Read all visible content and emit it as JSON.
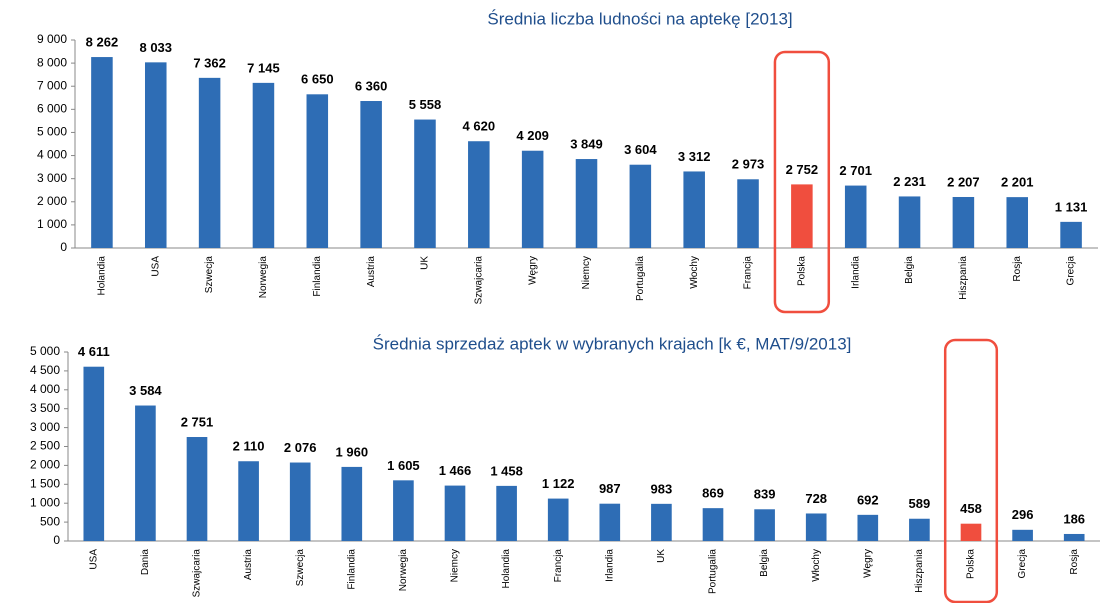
{
  "chart_data": [
    {
      "type": "bar",
      "title": "Średnia liczba ludności na aptekę [2013]",
      "categories": [
        "Holandia",
        "USA",
        "Szwecja",
        "Norwegia",
        "Finlandia",
        "Austria",
        "UK",
        "Szwajcaria",
        "Węgry",
        "Niemcy",
        "Portugalia",
        "Włochy",
        "Francja",
        "Polska",
        "Irlandia",
        "Belgia",
        "Hiszpania",
        "Rosja",
        "Grecja"
      ],
      "values": [
        8262,
        8033,
        7362,
        7145,
        6650,
        6360,
        5558,
        4620,
        4209,
        3849,
        3604,
        3312,
        2973,
        2752,
        2701,
        2231,
        2207,
        2201,
        1131
      ],
      "value_labels": [
        "8 262",
        "8 033",
        "7 362",
        "7 145",
        "6 650",
        "6 360",
        "5 558",
        "4 620",
        "4 209",
        "3 849",
        "3 604",
        "3 312",
        "2 973",
        "2 752",
        "2 701",
        "2 231",
        "2 207",
        "2 201",
        "1 131"
      ],
      "colors": [
        "#2e6db5",
        "#2e6db5",
        "#2e6db5",
        "#2e6db5",
        "#2e6db5",
        "#2e6db5",
        "#2e6db5",
        "#2e6db5",
        "#2e6db5",
        "#2e6db5",
        "#2e6db5",
        "#2e6db5",
        "#2e6db5",
        "#f04e3e",
        "#2e6db5",
        "#2e6db5",
        "#2e6db5",
        "#2e6db5",
        "#2e6db5"
      ],
      "ylim": [
        0,
        9000
      ],
      "yticks": [
        0,
        {
          "value": 1000,
          "label": "1 000"
        },
        {
          "value": 2000,
          "label": "2 000"
        },
        {
          "value": 3000,
          "label": "3 000"
        },
        {
          "value": 4000,
          "label": "4 000"
        },
        {
          "value": 5000,
          "label": "5 000"
        },
        {
          "value": 6000,
          "label": "6 000"
        },
        {
          "value": 7000,
          "label": "7 000"
        },
        {
          "value": 8000,
          "label": "8 000"
        },
        {
          "value": 9000,
          "label": "9 000"
        }
      ]
    },
    {
      "type": "bar",
      "title": "Średnia sprzedaż aptek w wybranych krajach [k €, MAT/9/2013]",
      "categories": [
        "USA",
        "Dania",
        "Szwajcaria",
        "Austria",
        "Szwecja",
        "Finlandia",
        "Norwegia",
        "Niemcy",
        "Holandia",
        "Francja",
        "Irlandia",
        "UK",
        "Portugalia",
        "Belgia",
        "Włochy",
        "Węgry",
        "Hiszpania",
        "Polska",
        "Grecja",
        "Rosja"
      ],
      "values": [
        4611,
        3584,
        2751,
        2110,
        2076,
        1960,
        1605,
        1466,
        1458,
        1122,
        987,
        983,
        869,
        839,
        728,
        692,
        589,
        458,
        296,
        186
      ],
      "value_labels": [
        "4 611",
        "3 584",
        "2 751",
        "2 110",
        "2 076",
        "1 960",
        "1 605",
        "1 466",
        "1 458",
        "1 122",
        "987",
        "983",
        "869",
        "839",
        "728",
        "692",
        "589",
        "458",
        "296",
        "186"
      ],
      "colors": [
        "#2e6db5",
        "#2e6db5",
        "#2e6db5",
        "#2e6db5",
        "#2e6db5",
        "#2e6db5",
        "#2e6db5",
        "#2e6db5",
        "#2e6db5",
        "#2e6db5",
        "#2e6db5",
        "#2e6db5",
        "#2e6db5",
        "#2e6db5",
        "#2e6db5",
        "#2e6db5",
        "#2e6db5",
        "#f04e3e",
        "#2e6db5",
        "#2e6db5"
      ],
      "ylim": [
        0,
        5000
      ],
      "yticks": [
        0,
        500,
        {
          "value": 1000,
          "label": "1 000"
        },
        {
          "value": 1500,
          "label": "1 500"
        },
        {
          "value": 2000,
          "label": "2 000"
        },
        {
          "value": 2500,
          "label": "2 500"
        },
        {
          "value": 3000,
          "label": "3 000"
        },
        {
          "value": 3500,
          "label": "3 500"
        },
        {
          "value": 4000,
          "label": "4 000"
        },
        {
          "value": 4500,
          "label": "4 500"
        },
        {
          "value": 5000,
          "label": "5 000"
        }
      ]
    }
  ]
}
